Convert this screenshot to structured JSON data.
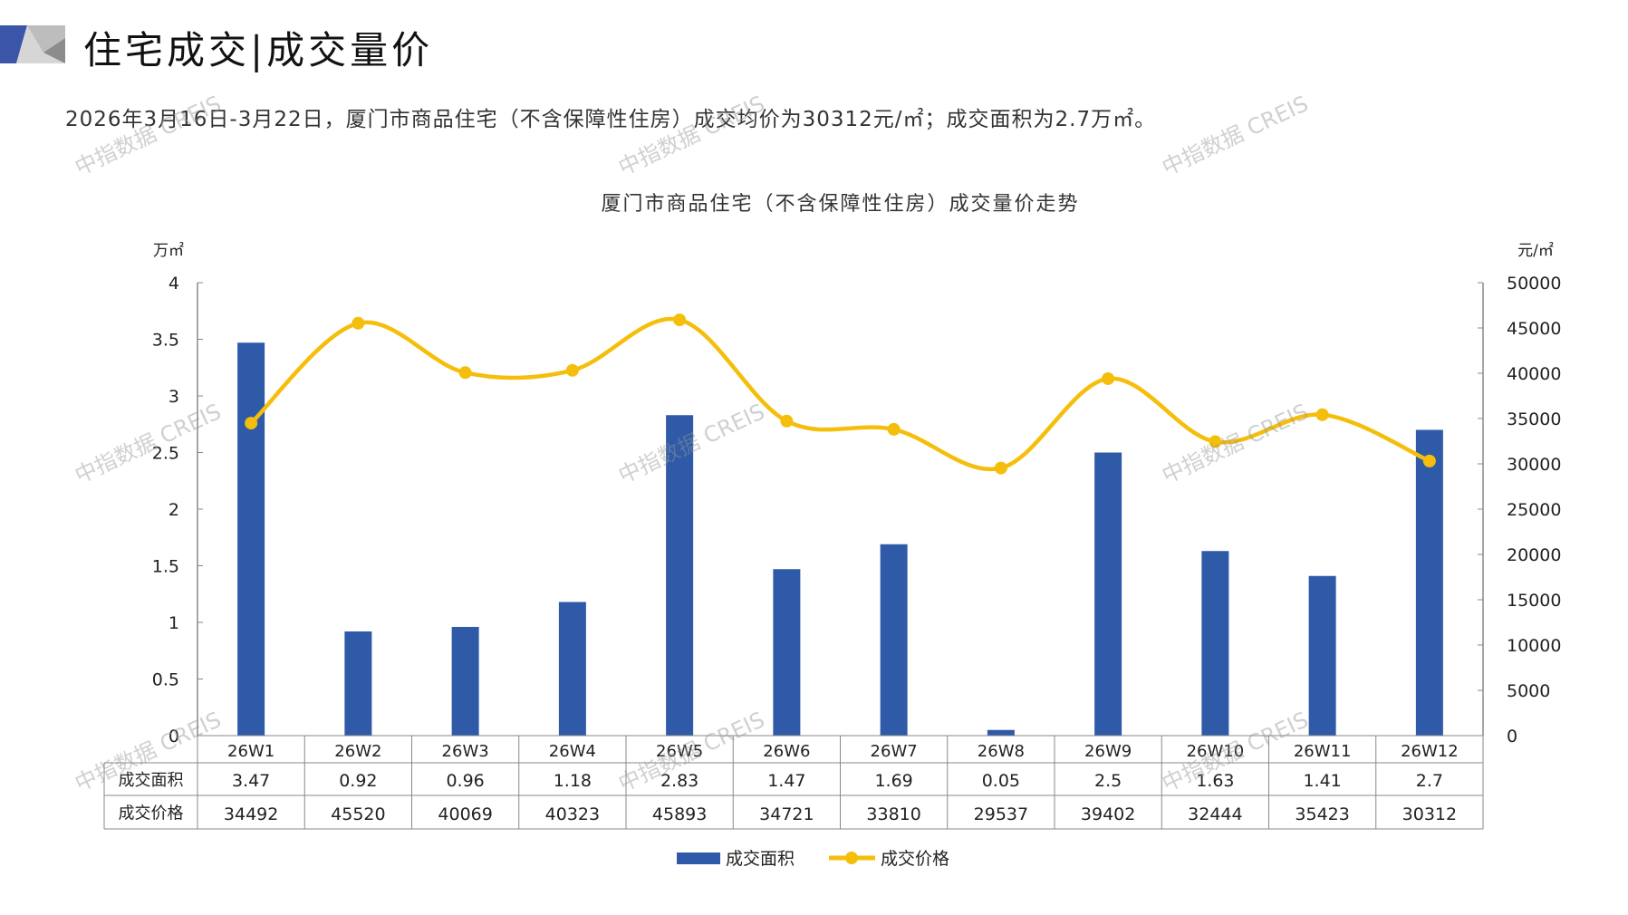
{
  "header": {
    "title": "住宅成交|成交量价",
    "summary": "2026年3月16日-3月22日，厦门市商品住宅（不含保障性住房）成交均价为30312元/㎡；成交面积为2.7万㎡。"
  },
  "watermark": "中指数据 CREIS",
  "colors": {
    "bar": "#2E5AA8",
    "line": "#F5BE0B",
    "accent": "#3B55A8"
  },
  "chart_data": {
    "type": "bar+line",
    "title": "厦门市商品住宅（不含保障性住房）成交量价走势",
    "categories": [
      "26W1",
      "26W2",
      "26W3",
      "26W4",
      "26W5",
      "26W6",
      "26W7",
      "26W8",
      "26W9",
      "26W10",
      "26W11",
      "26W12"
    ],
    "series": [
      {
        "name": "成交面积",
        "type": "bar",
        "axis": "left",
        "values": [
          3.47,
          0.92,
          0.96,
          1.18,
          2.83,
          1.47,
          1.69,
          0.05,
          2.5,
          1.63,
          1.41,
          2.7
        ],
        "labels": [
          "3.47",
          "0.92",
          "0.96",
          "1.18",
          "2.83",
          "1.47",
          "1.69",
          "0.05",
          "2.5",
          "1.63",
          "1.41",
          "2.7"
        ]
      },
      {
        "name": "成交价格",
        "type": "line",
        "axis": "right",
        "values": [
          34492,
          45520,
          40069,
          40323,
          45893,
          34721,
          33810,
          29537,
          39402,
          32444,
          35423,
          30312
        ],
        "labels": [
          "34492",
          "45520",
          "40069",
          "40323",
          "45893",
          "34721",
          "33810",
          "29537",
          "39402",
          "32444",
          "35423",
          "30312"
        ]
      }
    ],
    "y_left": {
      "label": "万㎡",
      "range": [
        0,
        4
      ],
      "ticks": [
        "0",
        "0.5",
        "1",
        "1.5",
        "2",
        "2.5",
        "3",
        "3.5",
        "4"
      ]
    },
    "y_right": {
      "label": "元/㎡",
      "range": [
        0,
        50000
      ],
      "ticks": [
        "0",
        "5000",
        "10000",
        "15000",
        "20000",
        "25000",
        "30000",
        "35000",
        "40000",
        "45000",
        "50000"
      ]
    },
    "legend": "bottom",
    "grid": false
  }
}
